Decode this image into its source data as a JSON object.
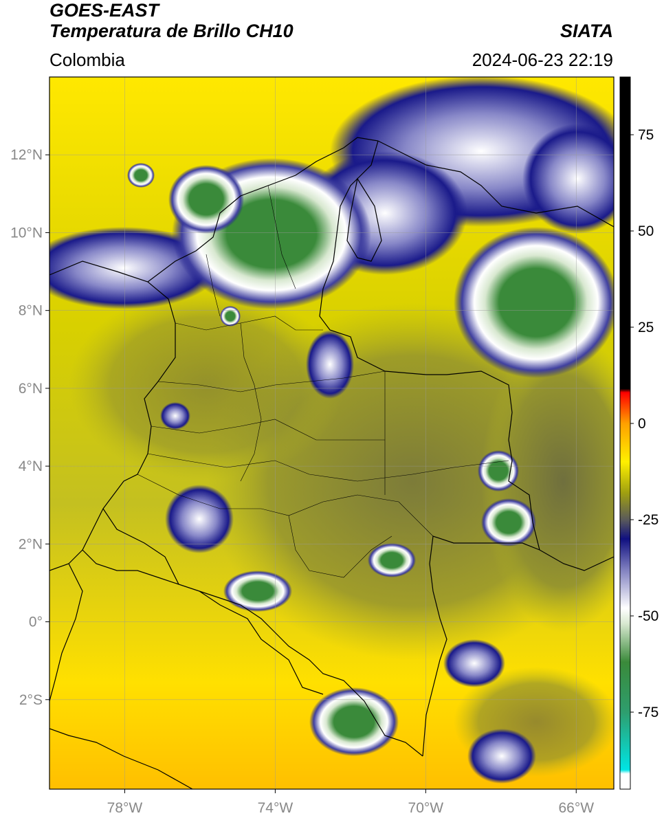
{
  "header": {
    "satellite": "GOES-EAST",
    "product": "Temperatura de Brillo CH10",
    "region": "Colombia",
    "source": "SIATA",
    "datetime": "2024-06-23 22:19"
  },
  "axes": {
    "lat_ticks": [
      "12°N",
      "10°N",
      "8°N",
      "6°N",
      "4°N",
      "2°N",
      "0°",
      "2°S"
    ],
    "lat_values": [
      12,
      10,
      8,
      6,
      4,
      2,
      0,
      -2
    ],
    "lon_ticks": [
      "78°W",
      "74°W",
      "70°W",
      "66°W"
    ],
    "lon_values": [
      -78,
      -74,
      -70,
      -66
    ],
    "lon_range": [
      -80,
      -65
    ],
    "lat_range": [
      -4.3,
      14
    ],
    "grid": true
  },
  "colorbar": {
    "ticks": [
      "75",
      "50",
      "25",
      "0",
      "-25",
      "-50",
      "-75"
    ],
    "tick_values": [
      75,
      50,
      25,
      0,
      -25,
      -50,
      -75
    ],
    "range": [
      -95,
      90
    ],
    "stops": [
      {
        "v": -95,
        "c": "#ffffff"
      },
      {
        "v": -91,
        "c": "#ffffff"
      },
      {
        "v": -90,
        "c": "#00e5e5"
      },
      {
        "v": -75,
        "c": "#2e9e6e"
      },
      {
        "v": -62,
        "c": "#3a8a3a"
      },
      {
        "v": -52,
        "c": "#d8e8d0"
      },
      {
        "v": -48,
        "c": "#ffffff"
      },
      {
        "v": -38,
        "c": "#8080c0"
      },
      {
        "v": -30,
        "c": "#101080"
      },
      {
        "v": -25,
        "c": "#5a5a5a"
      },
      {
        "v": -18,
        "c": "#a0a010"
      },
      {
        "v": -10,
        "c": "#fff000"
      },
      {
        "v": 0,
        "c": "#ffa000"
      },
      {
        "v": 8,
        "c": "#ff0000"
      },
      {
        "v": 9,
        "c": "#000000"
      },
      {
        "v": 90,
        "c": "#000000"
      }
    ]
  },
  "colors": {
    "warm": "#ffe800",
    "olive": "#b5b520",
    "cloud_blue": "#1a1a8a",
    "cloud_white": "#ffffff",
    "cold_green": "#3a8a3a",
    "cold_teal": "#2aa88a"
  }
}
